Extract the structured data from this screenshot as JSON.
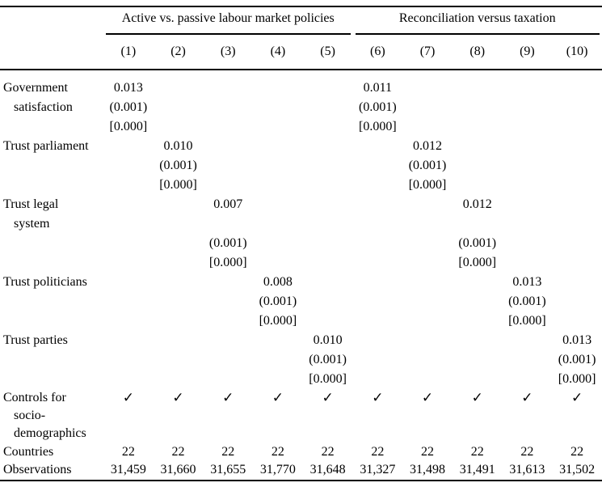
{
  "table": {
    "group_headers": [
      {
        "title": "Active vs. passive labour market policies"
      },
      {
        "title": "Reconciliation versus taxation"
      }
    ],
    "column_numbers": [
      "(1)",
      "(2)",
      "(3)",
      "(4)",
      "(5)",
      "(6)",
      "(7)",
      "(8)",
      "(9)",
      "(10)"
    ],
    "rows": {
      "government_satisfaction": {
        "label_line1": "Government",
        "label_line2": "satisfaction",
        "c1": {
          "est": "0.013",
          "se": "(0.001)",
          "p": "[0.000]"
        },
        "c6": {
          "est": "0.011",
          "se": "(0.001)",
          "p": "[0.000]"
        }
      },
      "trust_parliament": {
        "label_line1": "Trust parliament",
        "c2": {
          "est": "0.010",
          "se": "(0.001)",
          "p": "[0.000]"
        },
        "c7": {
          "est": "0.012",
          "se": "(0.001)",
          "p": "[0.000]"
        }
      },
      "trust_legal_system": {
        "label_line1": "Trust legal",
        "label_line2": "system",
        "c3": {
          "est": "0.007",
          "se": "(0.001)",
          "p": "[0.000]"
        },
        "c8": {
          "est": "0.012",
          "se": "(0.001)",
          "p": "[0.000]"
        }
      },
      "trust_politicians": {
        "label_line1": "Trust politicians",
        "c4": {
          "est": "0.008",
          "se": "(0.001)",
          "p": "[0.000]"
        },
        "c9": {
          "est": "0.013",
          "se": "(0.001)",
          "p": "[0.000]"
        }
      },
      "trust_parties": {
        "label_line1": "Trust parties",
        "c5": {
          "est": "0.010",
          "se": "(0.001)",
          "p": "[0.000]"
        },
        "c10": {
          "est": "0.013",
          "se": "(0.001)",
          "p": "[0.000]"
        }
      },
      "controls": {
        "label_line1": "Controls for",
        "label_line2": "socio-",
        "label_line3": "demographics",
        "checkmark": "✓"
      },
      "countries": {
        "label": "Countries",
        "value": "22"
      },
      "observations": {
        "label": "Observations",
        "values": [
          "31,459",
          "31,660",
          "31,655",
          "31,770",
          "31,648",
          "31,327",
          "31,498",
          "31,491",
          "31,613",
          "31,502"
        ]
      }
    }
  }
}
